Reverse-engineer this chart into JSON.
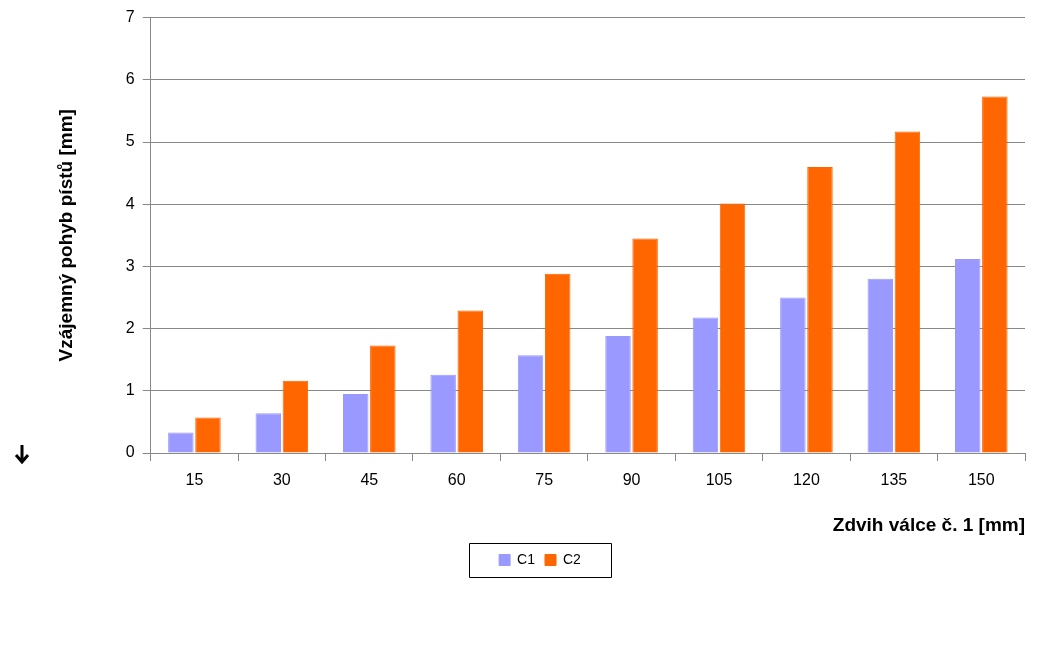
{
  "chart_data": {
    "type": "bar",
    "xlabel": "Zdvih válce č. 1 [mm]",
    "ylabel": "Vzájemný pohyb pístů [mm]",
    "categories": [
      "15",
      "30",
      "45",
      "60",
      "75",
      "90",
      "105",
      "120",
      "135",
      "150"
    ],
    "series": [
      {
        "name": "C1",
        "color": "#9999ff",
        "values": [
          0.33,
          0.64,
          0.95,
          1.26,
          1.57,
          1.88,
          2.18,
          2.5,
          2.8,
          3.12
        ]
      },
      {
        "name": "C2",
        "color": "#ff6600",
        "values": [
          0.57,
          1.16,
          1.73,
          2.29,
          2.88,
          3.45,
          4.01,
          4.6,
          5.17,
          5.73
        ]
      }
    ],
    "ylim": [
      0,
      7
    ],
    "yticks": [
      0,
      1,
      2,
      3,
      4,
      5,
      6,
      7
    ],
    "grid": "y",
    "legend": "bottom"
  }
}
